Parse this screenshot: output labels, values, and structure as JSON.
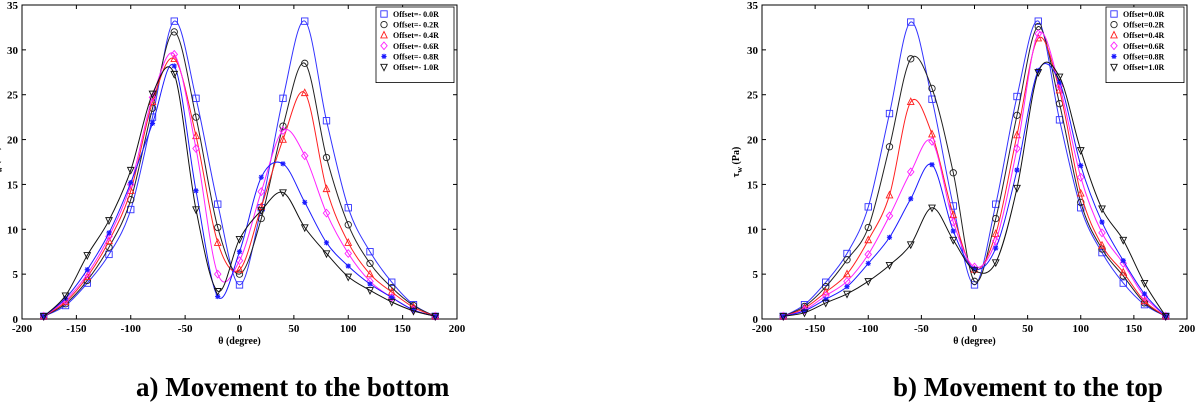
{
  "chart_data": [
    {
      "type": "line",
      "caption": "a) Movement to the bottom",
      "xlabel": "θ (degree)",
      "ylabel_main": "τ",
      "ylabel_sub": "w",
      "ylabel_unit": " (Pa)",
      "xlim": [
        -200,
        200
      ],
      "ylim": [
        0,
        35
      ],
      "xticks": [
        -200,
        -150,
        -100,
        -50,
        0,
        50,
        100,
        150,
        200
      ],
      "yticks": [
        0,
        5,
        10,
        15,
        20,
        25,
        30,
        35
      ],
      "grid": false,
      "legend_position": "top-right",
      "series": [
        {
          "name": "Offset=- 0.0R",
          "color": "#3333ff",
          "marker": "square",
          "x": [
            -180,
            -160,
            -140,
            -120,
            -100,
            -80,
            -60,
            -40,
            -20,
            0,
            20,
            40,
            60,
            80,
            100,
            120,
            140,
            160,
            180
          ],
          "y": [
            0.3,
            1.5,
            4.0,
            7.2,
            12.2,
            22.5,
            33.2,
            24.6,
            12.8,
            3.8,
            12.4,
            24.6,
            33.2,
            22.1,
            12.4,
            7.5,
            4.1,
            1.6,
            0.3
          ]
        },
        {
          "name": "Offset=- 0.2R",
          "color": "#222222",
          "marker": "circle",
          "x": [
            -180,
            -160,
            -140,
            -120,
            -100,
            -80,
            -60,
            -40,
            -20,
            0,
            20,
            40,
            60,
            80,
            100,
            120,
            140,
            160,
            180
          ],
          "y": [
            0.3,
            1.7,
            4.3,
            8.0,
            13.3,
            23.5,
            32.0,
            22.5,
            10.2,
            5.0,
            11.2,
            21.5,
            28.5,
            18.0,
            10.5,
            6.2,
            3.5,
            1.5,
            0.3
          ]
        },
        {
          "name": "Offset=- 0.4R",
          "color": "#ff2020",
          "marker": "triangle-up",
          "x": [
            -180,
            -160,
            -140,
            -120,
            -100,
            -80,
            -60,
            -40,
            -20,
            0,
            20,
            40,
            60,
            80,
            100,
            120,
            140,
            160,
            180
          ],
          "y": [
            0.3,
            1.9,
            4.7,
            8.7,
            14.3,
            24.2,
            29.0,
            20.4,
            8.5,
            5.5,
            12.5,
            20.0,
            25.2,
            14.5,
            8.5,
            5.0,
            3.0,
            1.3,
            0.3
          ]
        },
        {
          "name": "Offset=- 0.6R",
          "color": "#ff22ff",
          "marker": "diamond",
          "x": [
            -180,
            -160,
            -140,
            -120,
            -100,
            -80,
            -60,
            -40,
            -20,
            0,
            20,
            40,
            60,
            80,
            100,
            120,
            140,
            160,
            180
          ],
          "y": [
            0.3,
            2.1,
            5.0,
            9.2,
            15.0,
            24.7,
            29.5,
            19.0,
            5.0,
            6.5,
            14.2,
            21.0,
            18.2,
            11.8,
            7.3,
            4.2,
            2.4,
            1.0,
            0.3
          ]
        },
        {
          "name": "Offset=- 0.8R",
          "color": "#1a1aff",
          "marker": "star",
          "x": [
            -180,
            -160,
            -140,
            -120,
            -100,
            -80,
            -60,
            -40,
            -20,
            0,
            20,
            40,
            60,
            80,
            100,
            120,
            140,
            160,
            180
          ],
          "y": [
            0.3,
            2.3,
            5.5,
            9.6,
            15.2,
            21.8,
            28.2,
            14.3,
            2.5,
            7.5,
            15.8,
            17.3,
            13.0,
            8.5,
            5.9,
            3.9,
            2.4,
            1.0,
            0.3
          ]
        },
        {
          "name": "Offset=- 1.0R",
          "color": "#111111",
          "marker": "triangle-down",
          "x": [
            -180,
            -160,
            -140,
            -120,
            -100,
            -80,
            -60,
            -40,
            -20,
            0,
            20,
            40,
            60,
            80,
            100,
            120,
            140,
            160,
            180
          ],
          "y": [
            0.3,
            2.6,
            7.1,
            11.0,
            16.6,
            25.1,
            27.3,
            12.2,
            3.1,
            8.9,
            12.1,
            14.1,
            10.2,
            7.3,
            4.7,
            3.2,
            1.9,
            0.9,
            0.3
          ]
        }
      ]
    },
    {
      "type": "line",
      "caption": "b) Movement to the top",
      "xlabel": "θ (degree)",
      "ylabel_main": "τ",
      "ylabel_sub": "w",
      "ylabel_unit": " (Pa)",
      "xlim": [
        -200,
        200
      ],
      "ylim": [
        0,
        35
      ],
      "xticks": [
        -200,
        -150,
        -100,
        -50,
        0,
        50,
        100,
        150,
        200
      ],
      "yticks": [
        0,
        5,
        10,
        15,
        20,
        25,
        30,
        35
      ],
      "grid": false,
      "legend_position": "top-right",
      "series": [
        {
          "name": "Offset=0.0R",
          "color": "#3333ff",
          "marker": "square",
          "x": [
            -180,
            -160,
            -140,
            -120,
            -100,
            -80,
            -60,
            -40,
            -20,
            0,
            20,
            40,
            60,
            80,
            100,
            120,
            140,
            160,
            180
          ],
          "y": [
            0.3,
            1.6,
            4.1,
            7.3,
            12.5,
            22.9,
            33.1,
            24.5,
            12.6,
            3.8,
            12.8,
            24.8,
            33.2,
            22.2,
            12.4,
            7.4,
            4.0,
            1.6,
            0.3
          ]
        },
        {
          "name": "Offset=0.2R",
          "color": "#222222",
          "marker": "circle",
          "x": [
            -180,
            -160,
            -140,
            -120,
            -100,
            -80,
            -60,
            -40,
            -20,
            0,
            20,
            40,
            60,
            80,
            100,
            120,
            140,
            160,
            180
          ],
          "y": [
            0.3,
            1.4,
            3.6,
            6.6,
            10.2,
            19.2,
            29.0,
            25.7,
            16.3,
            4.2,
            11.2,
            22.7,
            32.6,
            24.0,
            13.0,
            7.8,
            4.8,
            1.8,
            0.3
          ]
        },
        {
          "name": "Offset=0.4R",
          "color": "#ff2020",
          "marker": "triangle-up",
          "x": [
            -180,
            -160,
            -140,
            -120,
            -100,
            -80,
            -60,
            -40,
            -20,
            0,
            20,
            40,
            60,
            80,
            100,
            120,
            140,
            160,
            180
          ],
          "y": [
            0.3,
            1.2,
            3.0,
            5.0,
            8.8,
            13.8,
            24.2,
            20.6,
            11.6,
            5.5,
            9.5,
            20.5,
            31.3,
            25.5,
            14.0,
            8.2,
            5.2,
            2.0,
            0.3
          ]
        },
        {
          "name": "Offset=0.6R",
          "color": "#ff22ff",
          "marker": "diamond",
          "x": [
            -180,
            -160,
            -140,
            -120,
            -100,
            -80,
            -60,
            -40,
            -20,
            0,
            20,
            40,
            60,
            80,
            100,
            120,
            140,
            160,
            180
          ],
          "y": [
            0.3,
            1.0,
            2.6,
            4.2,
            7.2,
            11.5,
            16.4,
            19.8,
            10.8,
            5.8,
            8.7,
            19.0,
            31.8,
            26.0,
            15.8,
            9.6,
            6.2,
            2.5,
            0.3
          ]
        },
        {
          "name": "Offset=0.8R",
          "color": "#1a1aff",
          "marker": "star",
          "x": [
            -180,
            -160,
            -140,
            -120,
            -100,
            -80,
            -60,
            -40,
            -20,
            0,
            20,
            40,
            60,
            80,
            100,
            120,
            140,
            160,
            180
          ],
          "y": [
            0.3,
            0.9,
            2.2,
            3.6,
            6.2,
            9.1,
            13.4,
            17.2,
            9.8,
            5.6,
            7.9,
            16.6,
            27.7,
            26.4,
            17.1,
            10.8,
            6.5,
            2.8,
            0.3
          ]
        },
        {
          "name": "Offset=1.0R",
          "color": "#111111",
          "marker": "triangle-down",
          "x": [
            -180,
            -160,
            -140,
            -120,
            -100,
            -80,
            -60,
            -40,
            -20,
            0,
            20,
            40,
            60,
            80,
            100,
            120,
            140,
            160,
            180
          ],
          "y": [
            0.3,
            0.7,
            1.8,
            2.8,
            4.2,
            6.0,
            8.3,
            12.4,
            8.8,
            5.4,
            6.3,
            14.6,
            27.5,
            27.0,
            18.8,
            12.3,
            8.8,
            4.0,
            0.3
          ]
        }
      ]
    }
  ]
}
